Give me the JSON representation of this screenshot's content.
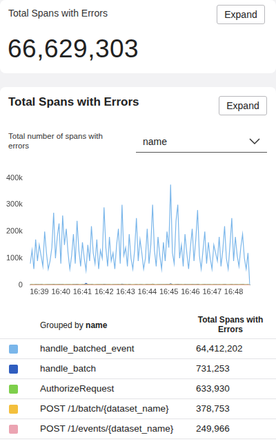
{
  "summary_card": {
    "title": "Total Spans with Errors",
    "button": "Expand",
    "value": "66,629,303"
  },
  "chart_card": {
    "title": "Total Spans with Errors",
    "button": "Expand",
    "subtitle": "Total number of spans with errors",
    "group_by": "name"
  },
  "chart_data": {
    "type": "line",
    "categories": [
      null,
      null,
      null,
      null,
      null,
      "16:39",
      null,
      null,
      null,
      null,
      null,
      null,
      null,
      null,
      null,
      null,
      null,
      "16:40",
      null,
      null,
      null,
      null,
      null,
      null,
      null,
      null,
      null,
      null,
      null,
      "16:41",
      null,
      null,
      null,
      null,
      null,
      null,
      null,
      null,
      null,
      null,
      null,
      "16:42",
      null,
      null,
      null,
      null,
      null,
      null,
      null,
      null,
      null,
      null,
      null,
      "16:43",
      null,
      null,
      null,
      null,
      null,
      null,
      null,
      null,
      null,
      null,
      null,
      "16:44",
      null,
      null,
      null,
      null,
      null,
      null,
      null,
      null,
      null,
      null,
      null,
      "16:45",
      null,
      null,
      null,
      null,
      null,
      null,
      null,
      null,
      null,
      null,
      null,
      "16:46",
      null,
      null,
      null,
      null,
      null,
      null,
      null,
      null,
      null,
      null,
      null,
      "16:47",
      null,
      null,
      null,
      null,
      null,
      null,
      null,
      null,
      null,
      null,
      null,
      "16:48",
      null,
      null,
      null,
      null,
      null,
      null,
      null,
      null,
      null
    ],
    "series": [
      {
        "name": "handle_batched_event",
        "color": "#7ab6ea",
        "values": [
          80000,
          130000,
          60000,
          170000,
          90000,
          150000,
          110000,
          70000,
          200000,
          120000,
          60000,
          90000,
          140000,
          270000,
          100000,
          180000,
          230000,
          80000,
          260000,
          150000,
          210000,
          120000,
          60000,
          110000,
          190000,
          80000,
          240000,
          130000,
          70000,
          160000,
          100000,
          55000,
          150000,
          90000,
          220000,
          120000,
          80000,
          170000,
          60000,
          130000,
          100000,
          290000,
          140000,
          70000,
          180000,
          90000,
          120000,
          60000,
          150000,
          210000,
          80000,
          300000,
          110000,
          140000,
          70000,
          190000,
          100000,
          60000,
          130000,
          250000,
          90000,
          170000,
          120000,
          60000,
          100000,
          210000,
          80000,
          150000,
          300000,
          130000,
          70000,
          180000,
          110000,
          60000,
          160000,
          90000,
          200000,
          140000,
          375000,
          120000,
          80000,
          240000,
          300000,
          100000,
          150000,
          70000,
          190000,
          120000,
          60000,
          140000,
          210000,
          90000,
          170000,
          280000,
          110000,
          60000,
          130000,
          200000,
          80000,
          160000,
          100000,
          60000,
          150000,
          120000,
          90000,
          180000,
          70000,
          130000,
          220000,
          100000,
          60000,
          150000,
          250000,
          90000,
          180000,
          110000,
          70000,
          140000,
          190000,
          100000,
          60000,
          120000,
          0
        ]
      },
      {
        "name": "handle_batch",
        "color": "#2f5dbf",
        "values": [
          1200,
          1500,
          1000,
          1800,
          1400,
          1100,
          2000,
          1300,
          900,
          1600,
          1200,
          1400,
          1700,
          2500,
          1100,
          1500,
          1900,
          1300,
          2200,
          1000,
          1400,
          1200,
          1600,
          1100,
          1800,
          1300,
          2400,
          1500,
          900,
          1400,
          1200,
          6000,
          1500,
          1100,
          1900,
          1300,
          1000,
          1600,
          1200,
          1400,
          1100,
          2800,
          1300,
          1500,
          1700,
          1000,
          1200,
          1400,
          1600,
          2000,
          1100,
          3000,
          1300,
          1500,
          1000,
          1800,
          1200,
          900,
          1400,
          2200,
          1100,
          1600,
          1300,
          1000,
          1200,
          1900,
          1400,
          1500,
          3500,
          1200,
          1000,
          1700,
          1300,
          1100,
          1500,
          1200,
          2000,
          1400,
          4500,
          1300,
          1000,
          2200,
          2600,
          1200,
          1500,
          1000,
          1800,
          1300,
          1100,
          1400,
          1900,
          1200,
          1600,
          2400,
          1300,
          1000,
          1400,
          1800,
          1100,
          1500,
          1200,
          1000,
          1600,
          1300,
          1100,
          1700,
          1000,
          1400,
          2000,
          1200,
          1000,
          1500,
          2200,
          1100,
          1700,
          1300,
          1000,
          1400,
          1800,
          1200,
          1000,
          1300,
          0
        ]
      },
      {
        "name": "AuthorizeRequest",
        "color": "#7ecf4b",
        "values": [
          900,
          1100,
          800,
          1200,
          1000,
          900,
          1300,
          1000,
          800,
          1100,
          900,
          1000,
          1200,
          1400,
          900,
          1100,
          1300,
          1000,
          1500,
          900,
          1100,
          1000,
          1200,
          900,
          1300,
          1000,
          1500,
          1100,
          800,
          1000,
          900,
          1200,
          1100,
          900,
          1300,
          1000,
          900,
          1200,
          1000,
          1100,
          900,
          1600,
          1000,
          1100,
          1200,
          900,
          1000,
          1100,
          1200,
          1400,
          900,
          1700,
          1000,
          1100,
          900,
          1300,
          1000,
          800,
          1100,
          1500,
          900,
          1200,
          1000,
          900,
          1000,
          1400,
          1100,
          1200,
          1800,
          1000,
          900,
          1300,
          1000,
          900,
          1200,
          1000,
          1400,
          1100,
          2000,
          1000,
          900,
          1500,
          1600,
          1000,
          1200,
          900,
          1300,
          1000,
          900,
          1100,
          1400,
          1000,
          1200,
          1600,
          1000,
          900,
          1100,
          1300,
          900,
          1200,
          1000,
          900,
          1200,
          1000,
          900,
          1300,
          900,
          1100,
          1400,
          1000,
          900,
          1200,
          1500,
          900,
          1300,
          1000,
          900,
          1100,
          1300,
          1000,
          900,
          1000,
          0
        ]
      },
      {
        "name": "POST /1/batch/{dataset_name}",
        "color": "#f3bf3c",
        "values": [
          600,
          700,
          500,
          800,
          600,
          600,
          800,
          600,
          500,
          700,
          600,
          600,
          700,
          900,
          600,
          700,
          800,
          600,
          900,
          600,
          700,
          600,
          700,
          600,
          800,
          600,
          900,
          700,
          500,
          600,
          600,
          800,
          700,
          600,
          800,
          600,
          600,
          700,
          600,
          700,
          600,
          1000,
          600,
          700,
          700,
          600,
          600,
          700,
          700,
          900,
          600,
          1000,
          600,
          700,
          600,
          800,
          600,
          500,
          700,
          900,
          600,
          700,
          600,
          600,
          600,
          900,
          700,
          700,
          1100,
          600,
          600,
          800,
          600,
          600,
          700,
          600,
          900,
          700,
          1200,
          600,
          600,
          900,
          1000,
          600,
          700,
          600,
          800,
          600,
          600,
          700,
          900,
          600,
          700,
          1000,
          600,
          600,
          700,
          800,
          600,
          700,
          600,
          600,
          700,
          600,
          600,
          800,
          600,
          700,
          900,
          600,
          600,
          700,
          900,
          600,
          800,
          600,
          600,
          700,
          800,
          600,
          600,
          600,
          0
        ]
      },
      {
        "name": "POST /1/events/{dataset_name}",
        "color": "#eba4b2",
        "values": [
          400,
          500,
          300,
          600,
          400,
          400,
          600,
          400,
          300,
          500,
          400,
          400,
          500,
          700,
          400,
          500,
          600,
          400,
          700,
          400,
          500,
          400,
          500,
          400,
          600,
          400,
          700,
          500,
          300,
          400,
          400,
          600,
          500,
          400,
          600,
          400,
          400,
          500,
          400,
          500,
          400,
          800,
          400,
          500,
          500,
          400,
          400,
          500,
          500,
          700,
          400,
          800,
          400,
          500,
          400,
          600,
          400,
          300,
          500,
          700,
          400,
          500,
          400,
          400,
          400,
          700,
          500,
          500,
          900,
          400,
          400,
          600,
          400,
          400,
          500,
          400,
          700,
          500,
          1000,
          400,
          400,
          700,
          800,
          400,
          500,
          400,
          600,
          400,
          400,
          500,
          700,
          400,
          500,
          800,
          400,
          400,
          500,
          600,
          400,
          500,
          400,
          400,
          500,
          400,
          400,
          600,
          400,
          500,
          700,
          400,
          400,
          500,
          700,
          400,
          600,
          400,
          400,
          500,
          600,
          400,
          400,
          400,
          0
        ]
      }
    ],
    "ylim": [
      0,
      400000
    ],
    "yticks": [
      0,
      {
        "value": 100000,
        "label": "100k"
      },
      {
        "value": 200000,
        "label": "200k"
      },
      {
        "value": 300000,
        "label": "300k"
      },
      {
        "value": 400000,
        "label": "400k"
      }
    ],
    "grid": false
  },
  "table": {
    "header_group": "Grouped by",
    "header_field": "name",
    "header_total": "Total Spans with Errors",
    "totals": [
      "64,412,202",
      "731,253",
      "633,930",
      "378,753",
      "249,966"
    ]
  }
}
